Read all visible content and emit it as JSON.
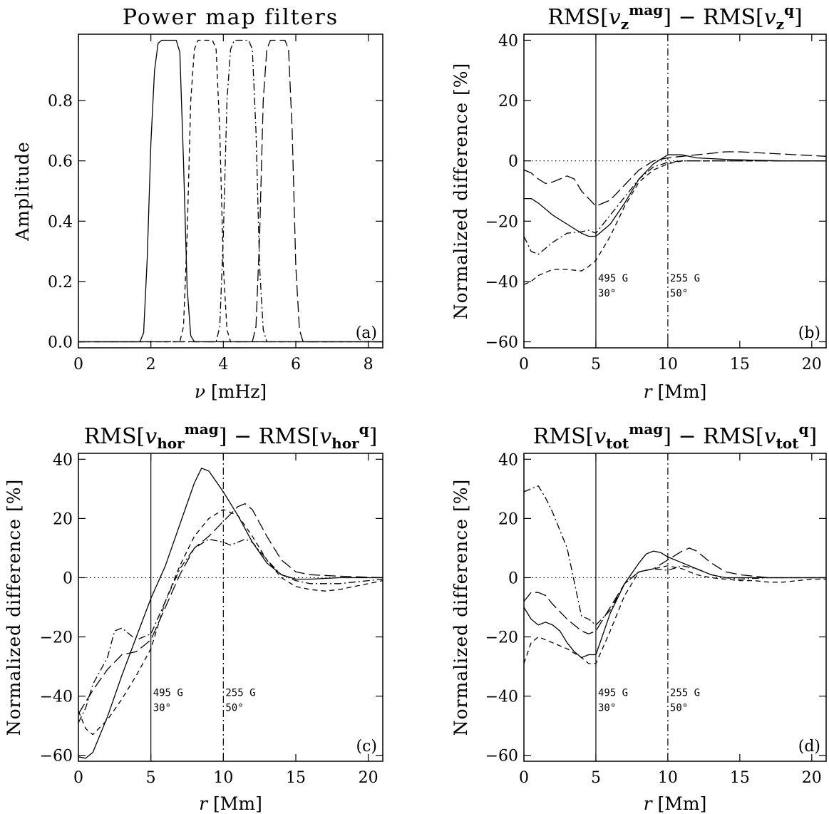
{
  "chart_data": [
    {
      "id": "a",
      "type": "line",
      "title": "Power map filters",
      "xlabel": "ν [mHz]",
      "ylabel": "Amplitude",
      "panel_label": "(a)",
      "xlim": [
        0,
        8.4
      ],
      "ylim": [
        -0.02,
        1.02
      ],
      "xticks": [
        0,
        2,
        4,
        6,
        8
      ],
      "xtick_labels": [
        "0",
        "2",
        "4",
        "6",
        "8"
      ],
      "yticks": [
        0.0,
        0.2,
        0.4,
        0.6,
        0.8
      ],
      "ytick_labels": [
        "0.0",
        "0.2",
        "0.4",
        "0.6",
        "0.8"
      ],
      "reference_lines": [],
      "annotations": [],
      "series": [
        {
          "style": "solid",
          "x": [
            0,
            1.7,
            1.8,
            1.9,
            2.0,
            2.1,
            2.2,
            2.3,
            2.4,
            2.5,
            2.6,
            2.7,
            2.8,
            2.9,
            3.0,
            3.1,
            3.2,
            8.4
          ],
          "y": [
            0,
            0,
            0.03,
            0.28,
            0.66,
            0.9,
            0.99,
            1,
            1,
            1,
            1,
            1,
            0.96,
            0.6,
            0.18,
            0.02,
            0,
            0
          ]
        },
        {
          "style": "dashed",
          "x": [
            0,
            2.8,
            2.9,
            3.0,
            3.1,
            3.2,
            3.3,
            3.5,
            3.7,
            3.8,
            3.9,
            4.0,
            4.1,
            4.2,
            8.4
          ],
          "y": [
            0,
            0,
            0.05,
            0.35,
            0.8,
            0.97,
            1,
            1,
            1,
            0.97,
            0.7,
            0.25,
            0.04,
            0,
            0
          ]
        },
        {
          "style": "dashdot",
          "x": [
            0,
            3.8,
            3.9,
            4.0,
            4.1,
            4.2,
            4.3,
            4.5,
            4.7,
            4.8,
            4.9,
            5.0,
            5.1,
            5.2,
            8.4
          ],
          "y": [
            0,
            0,
            0.05,
            0.35,
            0.8,
            0.97,
            1,
            1,
            1,
            0.97,
            0.7,
            0.25,
            0.04,
            0,
            0
          ]
        },
        {
          "style": "longdash",
          "x": [
            0,
            4.8,
            4.9,
            5.0,
            5.1,
            5.2,
            5.3,
            5.5,
            5.7,
            5.8,
            5.9,
            6.0,
            6.1,
            6.2,
            8.4
          ],
          "y": [
            0,
            0,
            0.05,
            0.35,
            0.8,
            0.97,
            1,
            1,
            1,
            0.97,
            0.7,
            0.25,
            0.04,
            0,
            0
          ]
        }
      ]
    },
    {
      "id": "b",
      "type": "line",
      "title": "RMS[vz^mag] − RMS[vz^q]",
      "title_parts": {
        "lhs": "RMS",
        "sym": "v",
        "sub": "z",
        "sup1": "mag",
        "sup2": "q",
        "minus": "−"
      },
      "xlabel": "r [Mm]",
      "ylabel": "Normalized difference [%]",
      "panel_label": "(b)",
      "xlim": [
        0,
        21
      ],
      "ylim": [
        -62,
        42
      ],
      "xticks": [
        0,
        5,
        10,
        15,
        20
      ],
      "xtick_labels": [
        "0",
        "5",
        "10",
        "15",
        "20"
      ],
      "yticks": [
        -60,
        -40,
        -20,
        0,
        20,
        40
      ],
      "ytick_labels": [
        "−60",
        "−40",
        "−20",
        "0",
        "20",
        "40"
      ],
      "reference_lines": [
        {
          "x": 5,
          "style": "solid"
        },
        {
          "x": 10,
          "style": "dashdot"
        },
        {
          "y": 0,
          "style": "dotted"
        }
      ],
      "annotations": [
        {
          "x": 5.15,
          "y": -40,
          "text": "495 G"
        },
        {
          "x": 5.15,
          "y": -45,
          "text": "30°"
        },
        {
          "x": 10.15,
          "y": -40,
          "text": "255 G"
        },
        {
          "x": 10.15,
          "y": -45,
          "text": "50°"
        }
      ],
      "series": [
        {
          "style": "solid",
          "x": [
            0,
            0.5,
            1,
            2,
            3,
            4,
            4.5,
            5,
            6,
            7,
            8,
            9,
            10,
            11,
            12,
            14,
            16,
            18,
            21
          ],
          "y": [
            -12.5,
            -12.5,
            -14,
            -18,
            -21,
            -24,
            -25,
            -25,
            -21,
            -14,
            -6,
            -1,
            2,
            2,
            1,
            0.5,
            0.2,
            0,
            0
          ]
        },
        {
          "style": "dashed",
          "x": [
            0,
            0.5,
            1,
            2,
            3,
            4,
            4.5,
            5,
            6,
            7,
            8,
            9,
            10,
            11,
            12,
            14,
            16,
            18,
            21
          ],
          "y": [
            -41,
            -40,
            -38,
            -36,
            -36,
            -36.5,
            -35,
            -33,
            -25,
            -15,
            -7,
            -3,
            -1,
            0,
            0,
            0,
            0,
            0,
            0
          ]
        },
        {
          "style": "dashdot",
          "x": [
            0,
            0.5,
            1,
            1.5,
            2,
            3,
            4,
            4.5,
            5,
            6,
            7,
            8,
            9,
            10,
            11,
            12,
            14,
            16,
            18,
            21
          ],
          "y": [
            -25,
            -30,
            -31,
            -29,
            -27,
            -24,
            -23.5,
            -23,
            -24,
            -18,
            -12,
            -6,
            -2,
            -0.5,
            0,
            0,
            0,
            0,
            0,
            0
          ]
        },
        {
          "style": "longdash",
          "x": [
            0,
            0.5,
            1,
            1.5,
            2,
            2.5,
            3,
            3.5,
            4,
            5,
            6,
            7,
            8,
            9,
            10,
            11,
            12,
            13,
            14,
            15,
            17,
            19,
            21
          ],
          "y": [
            -3,
            -4,
            -6,
            -7.5,
            -7,
            -6,
            -5,
            -6,
            -10,
            -15,
            -13,
            -8,
            -3,
            0,
            1,
            1.5,
            2,
            2.5,
            3,
            3,
            2.5,
            2,
            1.5
          ]
        }
      ]
    },
    {
      "id": "c",
      "type": "line",
      "title": "RMS[vhor^mag] − RMS[vhor^q]",
      "title_parts": {
        "lhs": "RMS",
        "sym": "v",
        "sub": "hor",
        "sup1": "mag",
        "sup2": "q",
        "minus": "−"
      },
      "xlabel": "r [Mm]",
      "ylabel": "Normalized difference [%]",
      "panel_label": "(c)",
      "xlim": [
        0,
        21
      ],
      "ylim": [
        -62,
        42
      ],
      "xticks": [
        0,
        5,
        10,
        15,
        20
      ],
      "xtick_labels": [
        "0",
        "5",
        "10",
        "15",
        "20"
      ],
      "yticks": [
        -60,
        -40,
        -20,
        0,
        20,
        40
      ],
      "ytick_labels": [
        "−60",
        "−40",
        "−20",
        "0",
        "20",
        "40"
      ],
      "reference_lines": [
        {
          "x": 5,
          "style": "solid"
        },
        {
          "x": 10,
          "style": "dashdot"
        },
        {
          "y": 0,
          "style": "dotted"
        }
      ],
      "annotations": [
        {
          "x": 5.15,
          "y": -40,
          "text": "495 G"
        },
        {
          "x": 5.15,
          "y": -45,
          "text": "30°"
        },
        {
          "x": 10.15,
          "y": -40,
          "text": "255 G"
        },
        {
          "x": 10.15,
          "y": -45,
          "text": "50°"
        }
      ],
      "series": [
        {
          "style": "solid",
          "x": [
            0,
            0.5,
            1,
            2,
            3,
            4,
            5,
            6,
            7,
            8,
            8.5,
            9,
            10,
            11,
            12,
            13,
            14,
            15,
            16,
            18,
            21
          ],
          "y": [
            -60.5,
            -61,
            -59,
            -47,
            -33,
            -20,
            -7,
            4,
            18,
            32,
            37,
            36,
            29,
            21,
            12,
            5,
            1,
            -0.5,
            -0.5,
            0,
            0
          ]
        },
        {
          "style": "dashed",
          "x": [
            0,
            0.5,
            1,
            2,
            3,
            4,
            5,
            6,
            7,
            8,
            9,
            10,
            11,
            12,
            13,
            14,
            15,
            16,
            17,
            18,
            19,
            20,
            21
          ],
          "y": [
            -45,
            -51,
            -53,
            -48,
            -41,
            -33,
            -24,
            -8,
            4,
            14,
            20,
            23,
            21,
            14,
            6,
            0,
            -3,
            -4,
            -4.5,
            -4,
            -3,
            -2,
            -1
          ]
        },
        {
          "style": "dashdot",
          "x": [
            0,
            0.5,
            1,
            2,
            2.5,
            3,
            3.5,
            4,
            5,
            6,
            7,
            8,
            9,
            10,
            10.5,
            11,
            11.5,
            12,
            13,
            14,
            15,
            16,
            17,
            18,
            19,
            20,
            21
          ],
          "y": [
            -49,
            -44,
            -36,
            -27,
            -18,
            -17,
            -19,
            -21,
            -19,
            -8,
            3,
            10,
            13,
            12,
            11,
            12,
            13,
            12,
            6,
            1,
            -1,
            -2,
            -2,
            -2,
            -1.5,
            -1,
            -0.5
          ]
        },
        {
          "style": "longdash",
          "x": [
            0,
            0.5,
            1,
            2,
            3,
            4,
            5,
            6,
            7,
            8,
            9,
            10,
            11,
            11.5,
            12,
            13,
            14,
            15,
            16,
            18,
            21
          ],
          "y": [
            -46,
            -42,
            -38,
            -31,
            -26,
            -25,
            -21,
            -10,
            1,
            10,
            14,
            19,
            24,
            25,
            23,
            14,
            6,
            2,
            1,
            0.5,
            0
          ]
        }
      ]
    },
    {
      "id": "d",
      "type": "line",
      "title": "RMS[vtot^mag] − RMS[vtot^q]",
      "title_parts": {
        "lhs": "RMS",
        "sym": "v",
        "sub": "tot",
        "sup1": "mag",
        "sup2": "q",
        "minus": "−"
      },
      "xlabel": "r [Mm]",
      "ylabel": "Normalized difference [%]",
      "panel_label": "(d)",
      "xlim": [
        0,
        21
      ],
      "ylim": [
        -62,
        42
      ],
      "xticks": [
        0,
        5,
        10,
        15,
        20
      ],
      "xtick_labels": [
        "0",
        "5",
        "10",
        "15",
        "20"
      ],
      "yticks": [
        -60,
        -40,
        -20,
        0,
        20,
        40
      ],
      "ytick_labels": [
        "−60",
        "−40",
        "−20",
        "0",
        "20",
        "40"
      ],
      "reference_lines": [
        {
          "x": 5,
          "style": "solid"
        },
        {
          "x": 10,
          "style": "dashdot"
        },
        {
          "y": 0,
          "style": "dotted"
        }
      ],
      "annotations": [
        {
          "x": 5.15,
          "y": -40,
          "text": "495 G"
        },
        {
          "x": 5.15,
          "y": -45,
          "text": "30°"
        },
        {
          "x": 10.15,
          "y": -40,
          "text": "255 G"
        },
        {
          "x": 10.15,
          "y": -45,
          "text": "50°"
        }
      ],
      "series": [
        {
          "style": "solid",
          "x": [
            0,
            0.5,
            1,
            1.5,
            2,
            2.5,
            3,
            3.5,
            4,
            4.5,
            5,
            6,
            7,
            8,
            8.5,
            9,
            9.5,
            10,
            11,
            12,
            13,
            14,
            15,
            17,
            21
          ],
          "y": [
            -10,
            -14,
            -16,
            -15,
            -16,
            -18,
            -22,
            -25,
            -27,
            -26,
            -26,
            -12,
            -2,
            5,
            8,
            9,
            8.5,
            7,
            5,
            3,
            1,
            0,
            0,
            0,
            0
          ]
        },
        {
          "style": "dashed",
          "x": [
            0,
            0.5,
            1,
            2,
            3,
            4,
            4.5,
            5,
            6,
            7,
            8,
            9,
            10,
            11,
            12,
            13,
            14,
            15,
            16,
            17,
            18,
            19,
            20,
            21
          ],
          "y": [
            -29,
            -22,
            -20,
            -22,
            -24,
            -27,
            -29,
            -29,
            -18,
            -6,
            2,
            3,
            4,
            3,
            1,
            0,
            -0.5,
            -1,
            -1,
            -1.5,
            -1.5,
            -1,
            -0.5,
            -0.5
          ]
        },
        {
          "style": "dashdot",
          "x": [
            0,
            0.5,
            1,
            1.5,
            2,
            3,
            4,
            4.5,
            5,
            6,
            7,
            8,
            9,
            10,
            11,
            12,
            13,
            14,
            15,
            17,
            21
          ],
          "y": [
            29,
            30,
            31,
            27,
            22,
            10,
            -13,
            -14,
            -16,
            -11,
            -2,
            2,
            3,
            2.5,
            4,
            3,
            1,
            0,
            -0.5,
            0,
            0
          ]
        },
        {
          "style": "longdash",
          "x": [
            0,
            0.5,
            1,
            1.5,
            2,
            3,
            4,
            4.5,
            5,
            6,
            7,
            8,
            9,
            10,
            11,
            11.5,
            12,
            13,
            14,
            15,
            17,
            21
          ],
          "y": [
            -8,
            -5,
            -5,
            -6,
            -9,
            -14,
            -18,
            -19,
            -18,
            -10,
            -2,
            2,
            3,
            6,
            9,
            10,
            9,
            5,
            2,
            1,
            0,
            0
          ]
        }
      ]
    }
  ]
}
